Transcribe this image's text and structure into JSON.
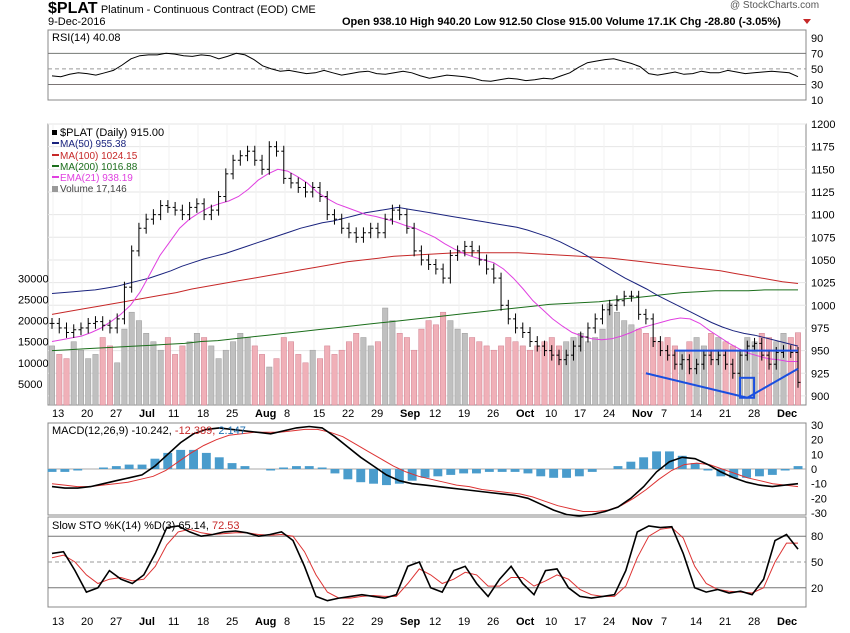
{
  "header": {
    "symbol": "$PLAT",
    "name": "Platinum - Continuous Contract (EOD)",
    "exchange": "CME",
    "date": "9-Dec-2016",
    "quote": "Open 938.10  High 940.20  Low 912.50  Close 915.00  Volume 17.1K  Chg -28.80 (-3.05%)",
    "watermark": "@ StockCharts.com"
  },
  "colors": {
    "ma50": "#1a237e",
    "ma100": "#c62828",
    "ma200": "#1b6e1b",
    "ema21": "#e040e0",
    "up": "#c0c0c0",
    "down": "#f0b0b8",
    "macd_hist": "#4a9ccc",
    "pattern": "#1a4fe0"
  },
  "legends": {
    "rsi": "RSI(14) 40.08",
    "price": "$PLAT (Daily) 915.00",
    "ma50": "MA(50) 955.38",
    "ma100": "MA(100) 1024.15",
    "ma200": "MA(200) 1016.88",
    "ema21": "EMA(21) 938.19",
    "volume": "Volume 17,146",
    "macd_a": "MACD(12,26,9) -10.242,",
    "macd_b": "-12.389,",
    "macd_c": "2.147",
    "sto_a": "Slow STO %K(14) %D(3) 65.14,",
    "sto_b": "72.53"
  },
  "chart_data": [
    {
      "type": "line",
      "title": "RSI(14)",
      "ylim": [
        10,
        100
      ],
      "ticks": [
        "90",
        "70",
        "50",
        "30",
        "10"
      ],
      "series": [
        {
          "name": "RSI(14)",
          "values": [
            41,
            40,
            43,
            45,
            44,
            42,
            45,
            48,
            55,
            63,
            67,
            68,
            68,
            70,
            69,
            67,
            66,
            68,
            67,
            63,
            66,
            70,
            68,
            62,
            54,
            50,
            47,
            48,
            46,
            44,
            45,
            48,
            45,
            42,
            44,
            46,
            47,
            44,
            43,
            45,
            47,
            45,
            41,
            38,
            40,
            42,
            41,
            40,
            38,
            35,
            34,
            36,
            38,
            37,
            35,
            36,
            38,
            37,
            41,
            45,
            52,
            58,
            60,
            62,
            63,
            60,
            57,
            53,
            44,
            42,
            44,
            46,
            43,
            44,
            47,
            45,
            45,
            48,
            46,
            44,
            45,
            46,
            47,
            46,
            45,
            40
          ]
        }
      ]
    },
    {
      "type": "candlestick",
      "title": "$PLAT (Daily)",
      "ylim": [
        890,
        1200
      ],
      "yticks": [
        "1200",
        "1175",
        "1150",
        "1125",
        "1100",
        "1075",
        "1050",
        "1025",
        "1000",
        "975",
        "950",
        "925",
        "900"
      ],
      "xticks": [
        "13",
        "20",
        "27",
        "Jul",
        "11",
        "18",
        "25",
        "Aug",
        "8",
        "15",
        "22",
        "29",
        "Sep",
        "12",
        "19",
        "26",
        "Oct",
        "10",
        "17",
        "24",
        "Nov",
        "7",
        "14",
        "21",
        "28",
        "Dec"
      ],
      "close": [
        980,
        975,
        970,
        973,
        975,
        980,
        982,
        978,
        975,
        985,
        1020,
        1060,
        1085,
        1095,
        1100,
        1110,
        1108,
        1105,
        1100,
        1108,
        1112,
        1100,
        1105,
        1120,
        1145,
        1160,
        1165,
        1170,
        1160,
        1150,
        1175,
        1170,
        1140,
        1135,
        1130,
        1125,
        1130,
        1120,
        1100,
        1095,
        1085,
        1080,
        1075,
        1080,
        1085,
        1080,
        1095,
        1105,
        1100,
        1085,
        1060,
        1050,
        1045,
        1040,
        1030,
        1055,
        1060,
        1065,
        1060,
        1050,
        1040,
        1030,
        1000,
        985,
        975,
        970,
        960,
        955,
        950,
        945,
        940,
        945,
        955,
        965,
        975,
        985,
        995,
        1000,
        1005,
        1010,
        1010,
        990,
        985,
        960,
        950,
        945,
        935,
        940,
        930,
        935,
        945,
        940,
        945,
        935,
        925,
        945,
        955,
        958,
        945,
        935,
        948,
        950,
        948,
        915
      ],
      "ma50": [
        1013,
        1014,
        1015,
        1016,
        1017,
        1019,
        1021,
        1024,
        1027,
        1030,
        1034,
        1038,
        1043,
        1047,
        1051,
        1054,
        1057,
        1061,
        1065,
        1069,
        1073,
        1077,
        1081,
        1085,
        1088,
        1091,
        1093,
        1096,
        1099,
        1102,
        1104,
        1106,
        1108,
        1106,
        1104,
        1102,
        1100,
        1098,
        1096,
        1094,
        1092,
        1090,
        1088,
        1086,
        1083,
        1079,
        1075,
        1070,
        1064,
        1058,
        1051,
        1044,
        1037,
        1030,
        1024,
        1018,
        1011,
        1005,
        999,
        993,
        987,
        981,
        976,
        972,
        969,
        967,
        964,
        961,
        958,
        955
      ],
      "ma100": [
        990,
        993,
        996,
        999,
        1002,
        1005,
        1008,
        1011,
        1014,
        1018,
        1021,
        1024,
        1027,
        1030,
        1033,
        1036,
        1039,
        1042,
        1045,
        1048,
        1050,
        1052,
        1054,
        1055,
        1056,
        1057,
        1058,
        1058,
        1058,
        1058,
        1058,
        1057,
        1056,
        1055,
        1054,
        1053,
        1052,
        1050,
        1048,
        1046,
        1044,
        1042,
        1040,
        1038,
        1035,
        1032,
        1029,
        1026,
        1024
      ],
      "ma200": [
        950,
        951,
        952,
        953,
        954,
        955,
        956,
        957,
        958,
        960,
        961,
        963,
        965,
        967,
        969,
        971,
        973,
        975,
        977,
        979,
        981,
        983,
        985,
        987,
        989,
        991,
        993,
        995,
        997,
        999,
        1001,
        1002,
        1003,
        1004,
        1006,
        1008,
        1010,
        1012,
        1014,
        1015,
        1016,
        1016,
        1016,
        1017,
        1017,
        1017
      ],
      "ema21": [
        960,
        962,
        964,
        966,
        970,
        975,
        982,
        990,
        1000,
        1015,
        1035,
        1055,
        1070,
        1085,
        1095,
        1102,
        1108,
        1112,
        1115,
        1120,
        1128,
        1138,
        1145,
        1150,
        1148,
        1142,
        1135,
        1125,
        1118,
        1112,
        1108,
        1104,
        1100,
        1098,
        1095,
        1092,
        1088,
        1085,
        1080,
        1075,
        1068,
        1062,
        1057,
        1053,
        1050,
        1047,
        1040,
        1030,
        1018,
        1005,
        995,
        985,
        977,
        970,
        966,
        963,
        962,
        963,
        966,
        970,
        975,
        978,
        981,
        984,
        986,
        985,
        980,
        972,
        965,
        958,
        952,
        947,
        944,
        941,
        940,
        938,
        938
      ],
      "pattern": {
        "resistance": [
          950,
          950
        ],
        "wedge_top": [
          925,
          940
        ],
        "wedge_bottom": [
          925,
          898
        ]
      }
    },
    {
      "type": "bar",
      "title": "Volume",
      "yticks": [
        "30000",
        "25000",
        "20000",
        "15000",
        "10000",
        "5000"
      ],
      "values": [
        14000,
        12000,
        11000,
        15000,
        13000,
        11000,
        12000,
        16000,
        14000,
        10000,
        18000,
        22000,
        20000,
        17000,
        15000,
        13000,
        16000,
        12000,
        14000,
        15000,
        17000,
        16000,
        14000,
        11000,
        13000,
        15000,
        17000,
        16000,
        14000,
        12000,
        9000,
        11000,
        16000,
        15000,
        12000,
        10000,
        13000,
        11000,
        14000,
        12000,
        13000,
        15000,
        17000,
        16000,
        14000,
        15000,
        23000,
        20000,
        17000,
        16000,
        13000,
        18000,
        20000,
        19000,
        22000,
        20000,
        18000,
        17000,
        16000,
        15000,
        14000,
        13000,
        14000,
        16000,
        15000,
        14000,
        13000,
        14000,
        15000,
        16000,
        14000,
        15000,
        16000,
        17000,
        15000,
        16000,
        18000,
        24000,
        22000,
        20000,
        19000,
        18000,
        17000,
        16000,
        15000,
        16000,
        14000,
        13000,
        15000,
        16000,
        14000,
        17000,
        16000,
        15000,
        14000,
        13000,
        16000,
        15000,
        17000,
        16000,
        15000,
        17000,
        16000,
        17146
      ]
    },
    {
      "type": "line",
      "title": "MACD(12,26,9)",
      "ylim": [
        -30,
        30
      ],
      "yticks": [
        "30",
        "20",
        "10",
        "0",
        "-10",
        "-20",
        "-30"
      ],
      "series": [
        {
          "name": "MACD",
          "values": [
            -12,
            -13,
            -13,
            -12,
            -10,
            -8,
            -6,
            -4,
            2,
            10,
            18,
            24,
            27,
            28,
            27,
            26,
            25,
            24,
            26,
            28,
            29,
            28,
            22,
            15,
            8,
            2,
            -4,
            -8,
            -10,
            -11,
            -12,
            -13,
            -14,
            -15,
            -16,
            -17,
            -18,
            -20,
            -24,
            -28,
            -31,
            -32,
            -31,
            -29,
            -26,
            -20,
            -12,
            -2,
            5,
            8,
            7,
            3,
            -2,
            -6,
            -9,
            -11,
            -12,
            -11,
            -10
          ]
        },
        {
          "name": "Signal",
          "values": [
            -10,
            -11,
            -12,
            -12,
            -11,
            -10,
            -9,
            -7,
            -5,
            -1,
            5,
            11,
            16,
            20,
            23,
            24,
            25,
            25,
            25,
            26,
            27,
            27,
            25,
            22,
            17,
            12,
            7,
            2,
            -2,
            -5,
            -7,
            -9,
            -11,
            -12,
            -14,
            -15,
            -16,
            -17,
            -19,
            -22,
            -25,
            -27,
            -29,
            -29,
            -28,
            -25,
            -20,
            -14,
            -7,
            -1,
            3,
            4,
            3,
            0,
            -3,
            -6,
            -8,
            -10,
            -11,
            -12
          ]
        },
        {
          "name": "Histogram",
          "values": [
            -2,
            -2,
            -1,
            0,
            1,
            2,
            3,
            3,
            7,
            11,
            13,
            13,
            11,
            8,
            4,
            2,
            0,
            -1,
            1,
            2,
            2,
            1,
            -3,
            -7,
            -9,
            -10,
            -11,
            -10,
            -8,
            -6,
            -5,
            -4,
            -3,
            -3,
            -2,
            -2,
            -2,
            -3,
            -5,
            -6,
            -6,
            -5,
            -2,
            0,
            2,
            5,
            8,
            12,
            12,
            9,
            4,
            -1,
            -5,
            -6,
            -6,
            -5,
            -4,
            -1,
            2
          ]
        }
      ]
    },
    {
      "type": "line",
      "title": "Slow STO %K(14) %D(3)",
      "ylim": [
        0,
        100
      ],
      "yticks": [
        "80",
        "50",
        "20"
      ],
      "series": [
        {
          "name": "%K",
          "values": [
            60,
            62,
            40,
            15,
            20,
            40,
            30,
            25,
            35,
            60,
            90,
            92,
            85,
            80,
            82,
            85,
            86,
            84,
            80,
            82,
            85,
            75,
            45,
            10,
            5,
            8,
            10,
            12,
            10,
            8,
            12,
            45,
            50,
            20,
            15,
            40,
            45,
            25,
            10,
            30,
            45,
            25,
            12,
            40,
            42,
            20,
            10,
            8,
            10,
            12,
            40,
            85,
            92,
            90,
            91,
            60,
            20,
            15,
            18,
            14,
            16,
            12,
            30,
            75,
            82,
            65
          ]
        },
        {
          "name": "%D",
          "values": [
            55,
            58,
            50,
            35,
            25,
            30,
            32,
            28,
            30,
            45,
            70,
            85,
            88,
            84,
            82,
            83,
            84,
            84,
            82,
            81,
            82,
            80,
            62,
            35,
            15,
            8,
            8,
            10,
            11,
            10,
            10,
            25,
            42,
            35,
            25,
            30,
            38,
            35,
            22,
            22,
            32,
            32,
            22,
            28,
            35,
            30,
            18,
            12,
            10,
            10,
            22,
            55,
            80,
            88,
            90,
            78,
            45,
            25,
            18,
            16,
            15,
            14,
            20,
            50,
            72,
            72
          ]
        }
      ]
    }
  ]
}
